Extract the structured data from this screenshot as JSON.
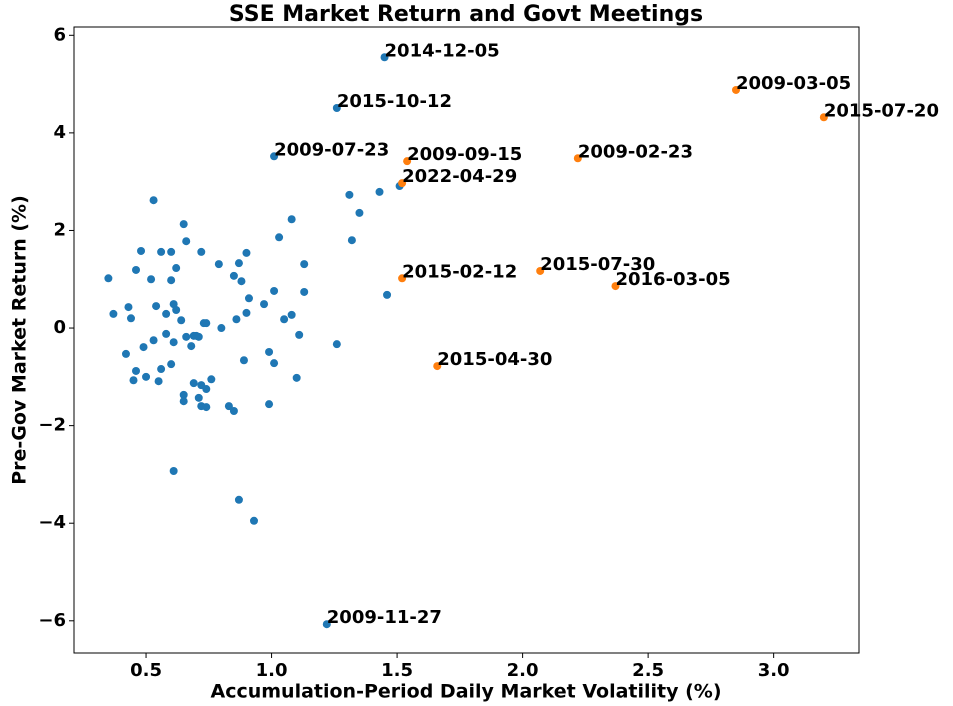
{
  "chart_data": {
    "type": "scatter",
    "title": "SSE Market Return and Govt Meetings",
    "x_label": "Accumulation-Period Daily Market Volatility (%)",
    "y_label": "Pre-Gov Market Return (%)",
    "xlim": [
      0.213,
      3.34
    ],
    "ylim": [
      -6.66,
      6.17
    ],
    "xticks": [
      0.5,
      {
        "value": 1,
        "label": "1.0"
      },
      1.5,
      {
        "value": 2,
        "label": "2.0"
      },
      2.5,
      {
        "value": 3,
        "label": "3.0"
      }
    ],
    "yticks": [
      {
        "value": -6,
        "label": "−6"
      },
      {
        "value": -4,
        "label": "−4"
      },
      {
        "value": -2,
        "label": "−2"
      },
      0,
      2,
      4,
      6
    ],
    "grid": false,
    "series": [
      {
        "color": "#1f77b4",
        "x": [
          1.45,
          1.26,
          1.01,
          1.22,
          0.35,
          0.37,
          0.43,
          0.44,
          0.42,
          0.45,
          0.46,
          0.46,
          0.48,
          0.49,
          0.5,
          0.52,
          0.53,
          0.53,
          0.54,
          0.55,
          0.56,
          0.56,
          0.58,
          0.58,
          0.6,
          0.6,
          0.6,
          0.61,
          0.61,
          0.61,
          0.62,
          0.62,
          0.64,
          0.65,
          0.65,
          0.66,
          0.65,
          0.66,
          0.68,
          0.69,
          0.69,
          0.7,
          0.71,
          0.71,
          0.72,
          0.72,
          0.72,
          0.73,
          0.74,
          0.74,
          0.74,
          0.76,
          0.79,
          0.8,
          0.83,
          0.85,
          0.85,
          0.86,
          0.87,
          0.87,
          0.88,
          0.89,
          0.9,
          0.9,
          0.91,
          0.93,
          0.97,
          0.99,
          0.99,
          1.01,
          1.01,
          1.03,
          1.05,
          1.08,
          1.08,
          1.1,
          1.11,
          1.13,
          1.13,
          1.26,
          1.31,
          1.32,
          1.35,
          1.43,
          1.46,
          1.51
        ],
        "values": [
          5.55,
          4.51,
          3.52,
          -6.07,
          1.02,
          0.29,
          0.43,
          0.2,
          -0.53,
          -1.07,
          1.19,
          -0.88,
          1.58,
          -0.39,
          -1.0,
          1.0,
          2.62,
          -0.25,
          0.45,
          -1.09,
          1.56,
          -0.84,
          0.29,
          -0.12,
          1.56,
          -0.74,
          0.98,
          -0.29,
          0.49,
          -2.93,
          1.23,
          0.37,
          0.16,
          -1.37,
          -1.5,
          1.78,
          2.13,
          -0.18,
          -0.37,
          -0.16,
          -1.13,
          -0.16,
          -1.43,
          -0.18,
          -1.17,
          -1.6,
          1.56,
          0.1,
          0.1,
          -1.25,
          -1.62,
          -1.05,
          1.31,
          0.0,
          -1.6,
          1.07,
          -1.7,
          0.18,
          -3.52,
          1.33,
          0.96,
          -0.66,
          0.31,
          1.54,
          0.61,
          -3.95,
          0.49,
          -0.49,
          -1.56,
          0.76,
          -0.72,
          1.86,
          0.18,
          0.27,
          2.23,
          -1.02,
          -0.14,
          1.31,
          0.74,
          -0.33,
          2.73,
          1.8,
          2.36,
          2.79,
          0.68,
          2.91
        ],
        "point_labels": [
          "2014-12-05",
          "2015-10-12",
          "2009-07-23",
          "2009-11-27",
          null,
          null,
          null,
          null,
          null,
          null,
          null,
          null,
          null,
          null,
          null,
          null,
          null,
          null,
          null,
          null,
          null,
          null,
          null,
          null,
          null,
          null,
          null,
          null,
          null,
          null,
          null,
          null,
          null,
          null,
          null,
          null,
          null,
          null,
          null,
          null,
          null,
          null,
          null,
          null,
          null,
          null,
          null,
          null,
          null,
          null,
          null,
          null,
          null,
          null,
          null,
          null,
          null,
          null,
          null,
          null,
          null,
          null,
          null,
          null,
          null,
          null,
          null,
          null,
          null,
          null,
          null,
          null,
          null,
          null,
          null,
          null,
          null,
          null,
          null,
          null,
          null,
          null,
          null,
          null,
          null,
          null
        ]
      },
      {
        "color": "#ff7f0e",
        "x": [
          2.85,
          3.2,
          1.54,
          2.22,
          1.52,
          1.52,
          2.07,
          2.37,
          1.66
        ],
        "values": [
          4.88,
          4.32,
          3.42,
          3.48,
          2.97,
          1.02,
          1.17,
          0.86,
          -0.78
        ],
        "point_labels": [
          "2009-03-05",
          "2015-07-20",
          "2009-09-15",
          "2009-02-23",
          "2022-04-29",
          "2015-02-12",
          "2015-07-30",
          "2016-03-05",
          "2015-04-30"
        ]
      }
    ]
  }
}
